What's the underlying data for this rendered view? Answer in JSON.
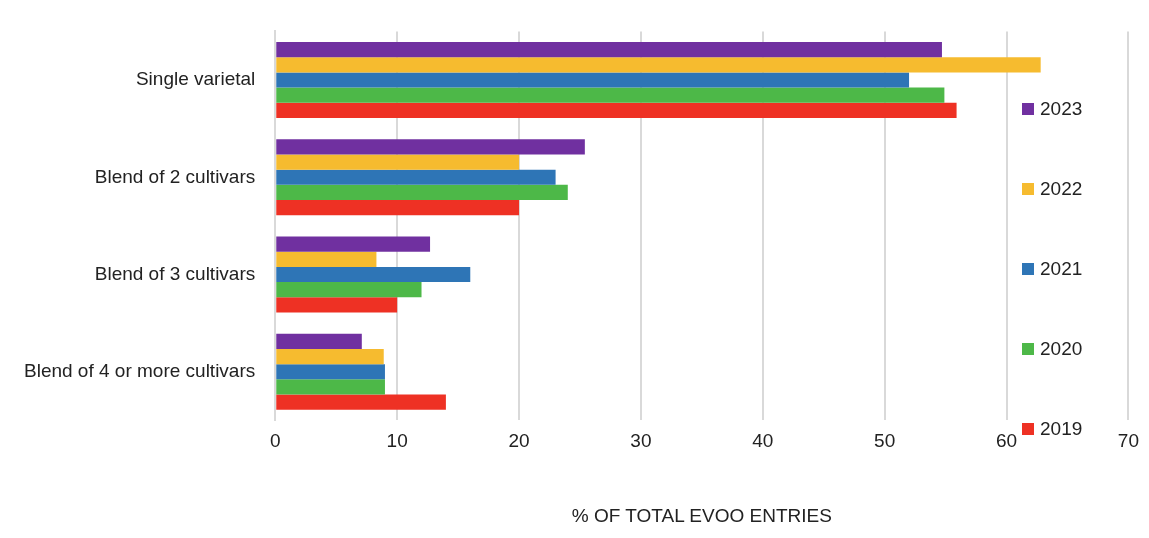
{
  "chart_data": {
    "type": "bar",
    "orientation": "horizontal",
    "xlabel": "% OF TOTAL EVOO ENTRIES",
    "categories": [
      "Single varietal",
      "Blend of 2 cultivars",
      "Blend of 3 cultivars",
      "Blend of 4 or more cultivars"
    ],
    "series": [
      {
        "name": "2023",
        "color": "#7030a0",
        "values": [
          54.7,
          25.4,
          12.7,
          7.1
        ]
      },
      {
        "name": "2022",
        "color": "#f6bb2f",
        "values": [
          62.8,
          20,
          8.3,
          8.9
        ]
      },
      {
        "name": "2021",
        "color": "#2e75b6",
        "values": [
          52,
          23,
          16,
          9
        ]
      },
      {
        "name": "2020",
        "color": "#4db848",
        "values": [
          54.9,
          24,
          12,
          9
        ]
      },
      {
        "name": "2019",
        "color": "#ee3124",
        "values": [
          55.9,
          20,
          10,
          14
        ]
      }
    ],
    "xlim": [
      0,
      70
    ],
    "xticks": [
      0,
      10,
      20,
      30,
      40,
      50,
      60,
      70
    ],
    "grid": "x",
    "legend": "right"
  }
}
